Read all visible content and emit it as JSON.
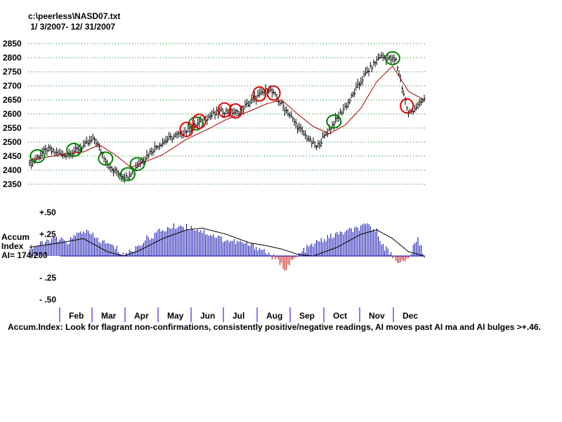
{
  "header": {
    "file": "c:\\peerless\\NASD07.txt",
    "range": " 1/ 3/2007- 12/ 31/2007"
  },
  "side": {
    "line1": "Accum",
    "line2": "Index",
    "line3": "AI= 174/200"
  },
  "footer": {
    "text": "Accum.Index: Look for flagrant non-confirmations, consistently positive/negative readings, AI moves past AI ma and AI bulges >+.46."
  },
  "colors": {
    "price_bar": "#000000",
    "moving_avg": "#aa0000",
    "grid": "#008000",
    "ai_positive": "#0000aa",
    "ai_negative": "#cc0000",
    "ai_ma": "#000000",
    "circle_buy": "#008000",
    "circle_sell": "#e00000",
    "month_tick": "#0000ff"
  },
  "chart_data": [
    {
      "type": "line",
      "title": "",
      "ylim": [
        2350,
        2850
      ],
      "y_ticks": [
        "2850",
        "2800",
        "2750",
        "2700",
        "2650",
        "2600",
        "2550",
        "2500",
        "2450",
        "2400",
        "2350"
      ],
      "series": [
        {
          "kind": "price-bars",
          "x": [
            1,
            12,
            22,
            32,
            42,
            52,
            62,
            72,
            82,
            92,
            102,
            112,
            122,
            132,
            142,
            152,
            162,
            172,
            182,
            192,
            202,
            212,
            222,
            232,
            240,
            250
          ],
          "values": [
            2420,
            2475,
            2450,
            2475,
            2510,
            2405,
            2375,
            2435,
            2490,
            2520,
            2545,
            2585,
            2610,
            2605,
            2650,
            2690,
            2620,
            2540,
            2480,
            2560,
            2640,
            2735,
            2805,
            2790,
            2600,
            2650
          ]
        },
        {
          "kind": "moving-average",
          "x": [
            1,
            20,
            35,
            45,
            55,
            65,
            85,
            100,
            115,
            125,
            140,
            150,
            160,
            170,
            180,
            190,
            200,
            210,
            220,
            230,
            240,
            250
          ],
          "values": [
            2435,
            2455,
            2465,
            2490,
            2455,
            2410,
            2455,
            2510,
            2550,
            2580,
            2610,
            2635,
            2650,
            2600,
            2555,
            2530,
            2560,
            2620,
            2715,
            2770,
            2680,
            2650
          ]
        }
      ],
      "buy_signal_x": [
        6,
        29,
        49,
        63,
        69,
        106,
        193,
        230
      ],
      "sell_signal_x": [
        100,
        108,
        124,
        131,
        146,
        155,
        239
      ]
    },
    {
      "type": "area",
      "title": "",
      "ylim": [
        -0.5,
        0.5
      ],
      "y_ticks": [
        "+.50",
        "+.25",
        "- .25",
        "- .50"
      ],
      "months": [
        "Feb",
        "Mar",
        "Apr",
        "May",
        "Jun",
        "Jul",
        "Aug",
        "Sep",
        "Oct",
        "Nov",
        "Dec"
      ],
      "series": [
        {
          "kind": "accum-index",
          "x": [
            1,
            10,
            15,
            25,
            35,
            45,
            55,
            60,
            65,
            75,
            85,
            95,
            105,
            115,
            125,
            135,
            145,
            150,
            157,
            162,
            168,
            175,
            185,
            195,
            205,
            215,
            220,
            225,
            232,
            238,
            242,
            246,
            250
          ],
          "values": [
            0.1,
            0.14,
            0.2,
            0.16,
            0.3,
            0.18,
            0.1,
            0.02,
            0.05,
            0.2,
            0.3,
            0.35,
            0.32,
            0.25,
            0.18,
            0.15,
            0.1,
            0.05,
            -0.05,
            -0.14,
            -0.04,
            0.08,
            0.18,
            0.25,
            0.3,
            0.35,
            0.28,
            0.1,
            -0.04,
            -0.08,
            0.05,
            0.2,
            0.0
          ]
        },
        {
          "kind": "accum-index-ma",
          "x": [
            1,
            20,
            35,
            50,
            60,
            70,
            85,
            100,
            110,
            125,
            140,
            150,
            160,
            170,
            180,
            195,
            210,
            220,
            230,
            240,
            250
          ],
          "values": [
            0.1,
            0.15,
            0.2,
            0.05,
            0.0,
            0.06,
            0.2,
            0.3,
            0.32,
            0.25,
            0.15,
            0.12,
            0.08,
            0.02,
            0.0,
            0.1,
            0.25,
            0.3,
            0.2,
            0.05,
            0.0
          ]
        }
      ]
    }
  ]
}
